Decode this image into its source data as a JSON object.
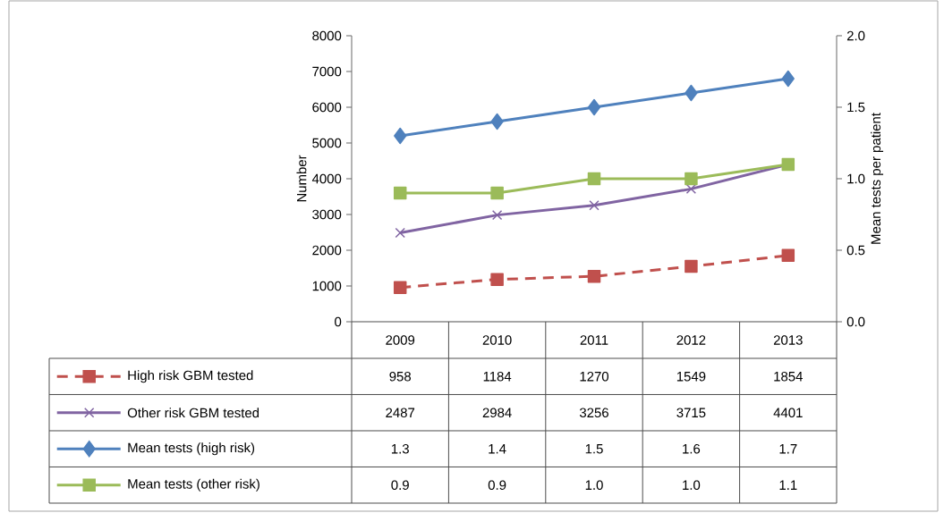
{
  "chart_data": {
    "type": "line",
    "categories": [
      "2009",
      "2010",
      "2011",
      "2012",
      "2013"
    ],
    "ylabel": "Number",
    "y2label": "Mean tests per patient",
    "ylim": [
      0,
      8000
    ],
    "yticks": [
      0,
      1000,
      2000,
      3000,
      4000,
      5000,
      6000,
      7000,
      8000
    ],
    "y2lim": [
      0,
      2.0
    ],
    "y2ticks": [
      {
        "value": 0,
        "label": "0.0"
      },
      0.5,
      {
        "value": 1,
        "label": "1.0"
      },
      1.5,
      {
        "value": 2,
        "label": "2.0"
      }
    ],
    "series": [
      {
        "name": "High risk GBM tested",
        "color": "#c0504d",
        "marker": "square",
        "line_style": "dashed",
        "values": [
          958,
          1184,
          1270,
          1549,
          1854
        ],
        "value_labels": [
          "958",
          "1184",
          "1270",
          "1549",
          "1854"
        ]
      },
      {
        "name": "Other risk GBM tested",
        "color": "#8064a2",
        "marker": "cross",
        "line_style": "solid",
        "values": [
          2487,
          2984,
          3256,
          3715,
          4401
        ],
        "value_labels": [
          "2487",
          "2984",
          "3256",
          "3715",
          "4401"
        ]
      },
      {
        "name": "Mean tests (high risk)",
        "color": "#4f81bd",
        "marker": "diamond",
        "line_style": "solid",
        "axis": "y2",
        "values": [
          1.3,
          1.4,
          1.5,
          1.6,
          1.7
        ],
        "value_labels": [
          "1.3",
          "1.4",
          "1.5",
          "1.6",
          "1.7"
        ]
      },
      {
        "name": "Mean tests (other risk)",
        "color": "#9bbb59",
        "marker": "square",
        "line_style": "solid",
        "axis": "y2",
        "values": [
          0.9,
          0.9,
          1.0,
          1.0,
          1.1
        ],
        "value_labels": [
          "0.9",
          "0.9",
          "1.0",
          "1.0",
          "1.1"
        ]
      }
    ],
    "legend": "bottom"
  }
}
